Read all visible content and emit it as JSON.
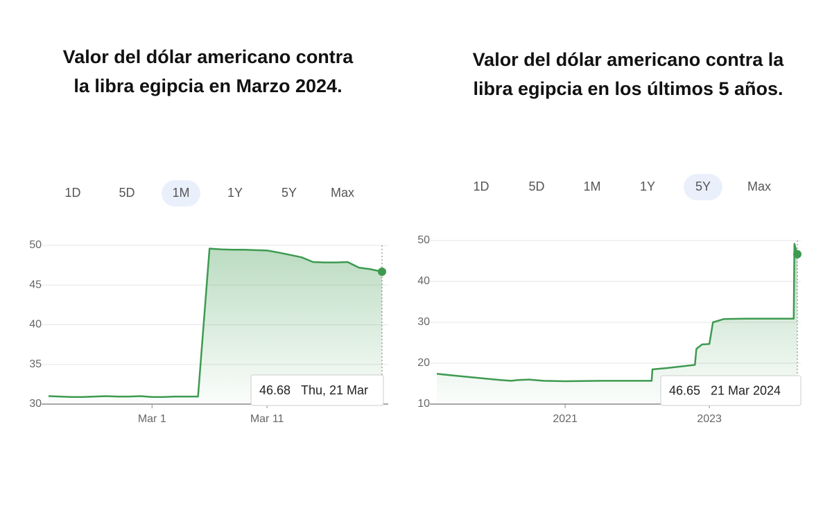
{
  "chart_data": [
    {
      "type": "line",
      "title": [
        "Valor del dólar americano contra",
        "la libra egipcia en Marzo 2024."
      ],
      "ranges": [
        "1D",
        "5D",
        "1M",
        "1Y",
        "5Y",
        "Max"
      ],
      "selected_range": "1M",
      "categories": [
        null,
        null,
        null,
        null,
        null,
        null,
        null,
        null,
        null,
        "Mar 1",
        null,
        null,
        null,
        null,
        null,
        null,
        null,
        null,
        null,
        "Mar 11",
        null,
        null,
        null,
        null,
        null,
        null,
        null,
        null,
        null,
        null
      ],
      "values": [
        31.0,
        30.95,
        30.9,
        30.9,
        30.95,
        31.0,
        30.95,
        30.95,
        31.0,
        30.9,
        30.9,
        30.95,
        30.95,
        30.95,
        49.6,
        49.5,
        49.45,
        49.45,
        49.4,
        49.35,
        49.1,
        48.8,
        48.5,
        47.9,
        47.85,
        47.85,
        47.9,
        47.2,
        47.0,
        46.68
      ],
      "color": "#3d9a50",
      "ylim": [
        30,
        50
      ],
      "yticks": [
        30,
        35,
        40,
        45,
        50
      ],
      "grid": true,
      "tooltip": {
        "value": 46.68,
        "label": "Thu, 21 Mar"
      }
    },
    {
      "type": "line",
      "title": [
        "Valor del dólar americano contra la",
        "libra egipcia en los últimos 5 años."
      ],
      "ranges": [
        "1D",
        "5D",
        "1M",
        "1Y",
        "5Y",
        "Max"
      ],
      "selected_range": "5Y",
      "x": [
        2019.22,
        2019.5,
        2019.8,
        2020.1,
        2020.25,
        2020.35,
        2020.5,
        2020.7,
        2021.0,
        2021.5,
        2022.0,
        2022.2,
        2022.21,
        2022.4,
        2022.6,
        2022.8,
        2022.82,
        2022.9,
        2023.0,
        2023.05,
        2023.2,
        2023.5,
        2024.0,
        2024.17,
        2024.18,
        2024.22
      ],
      "values": [
        17.4,
        16.9,
        16.4,
        15.9,
        15.7,
        15.9,
        16.0,
        15.7,
        15.6,
        15.7,
        15.7,
        15.7,
        18.5,
        18.8,
        19.2,
        19.6,
        23.5,
        24.6,
        24.7,
        30.0,
        30.8,
        30.9,
        30.9,
        30.9,
        49.2,
        46.65
      ],
      "color": "#3d9a50",
      "xlim": [
        2019.22,
        2024.22
      ],
      "xticks": [
        2021,
        2023
      ],
      "ylim": [
        10,
        50
      ],
      "yticks": [
        10,
        20,
        30,
        40,
        50
      ],
      "grid": true,
      "tooltip": {
        "value": 46.65,
        "label": "21 Mar 2024"
      }
    }
  ]
}
